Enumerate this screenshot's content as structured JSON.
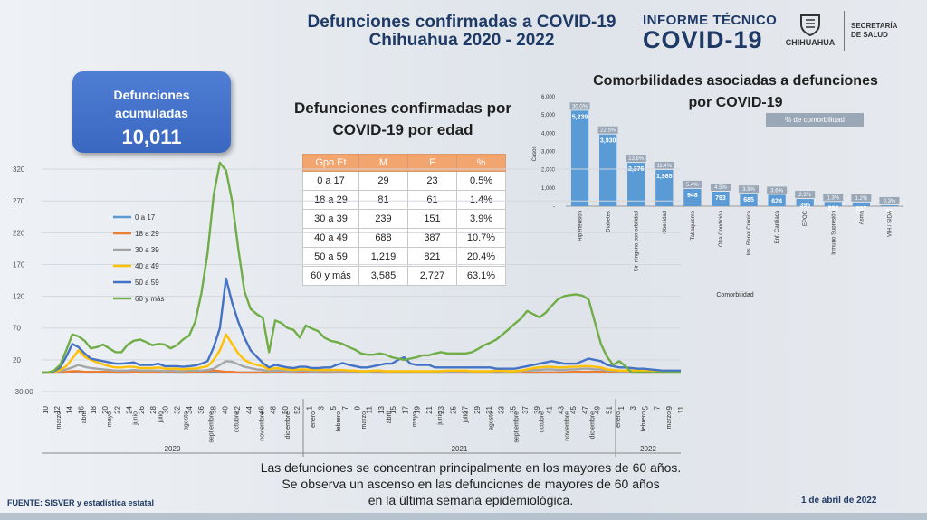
{
  "header": {
    "title_line1": "Defunciones confirmadas a COVID-19",
    "title_line2": "Chihuahua 2020 - 2022",
    "brand_line1": "INFORME TÉCNICO",
    "brand_line2": "COVID-19",
    "logo_text": "CHIHUAHUA",
    "secretaria_line1": "SECRETARÍA",
    "secretaria_line2": "DE SALUD"
  },
  "kpi": {
    "label_line1": "Defunciones",
    "label_line2": "acumuladas",
    "value": "10,011"
  },
  "age_table": {
    "title_line1": "Defunciones confirmadas por",
    "title_line2": "COVID-19 por edad",
    "headers": [
      "Gpo Et",
      "M",
      "F",
      "%"
    ],
    "rows": [
      [
        "0 a 17",
        "29",
        "23",
        "0.5%"
      ],
      [
        "18 a 29",
        "81",
        "61",
        "1.4%"
      ],
      [
        "30 a 39",
        "239",
        "151",
        "3.9%"
      ],
      [
        "40 a 49",
        "688",
        "387",
        "10.7%"
      ],
      [
        "50 a 59",
        "1,219",
        "821",
        "20.4%"
      ],
      [
        "60 y más",
        "3,585",
        "2,727",
        "63.1%"
      ]
    ]
  },
  "comorbidity": {
    "title_line1": "Comorbilidades asociadas a defunciones",
    "title_line2": "por COVID-19",
    "legend_label": "% de comorbilidad"
  },
  "note": {
    "line1": "Las defunciones se concentran principalmente en los mayores de 60 años.",
    "line2": "Se observa un ascenso en las defunciones de mayores de 60 años",
    "line3": "en la última semana epidemiológica."
  },
  "footer": {
    "source": "FUENTE: SISVER y estadística estatal",
    "date": "1 de abril de 2022"
  },
  "colors": {
    "accent": "#1f3a66",
    "bar": "#5b9bd5",
    "table_header": "#f2a56e"
  },
  "chart_data": [
    {
      "type": "line",
      "title": "",
      "xlabel": "",
      "ylabel": "",
      "ylim": [
        0,
        340
      ],
      "yticks": [
        "320",
        "270",
        "220",
        "170",
        "120",
        "70",
        "20",
        "-30.00"
      ],
      "grid": true,
      "legend": "left",
      "x_tick_labels": [
        "10",
        "12",
        "14",
        "16",
        "18",
        "20",
        "22",
        "24",
        "26",
        "28",
        "30",
        "32",
        "34",
        "36",
        "38",
        "40",
        "42",
        "44",
        "46",
        "48",
        "50",
        "52",
        "1",
        "3",
        "5",
        "7",
        "9",
        "11",
        "13",
        "15",
        "17",
        "19",
        "21",
        "23",
        "25",
        "27",
        "29",
        "31",
        "33",
        "35",
        "37",
        "39",
        "41",
        "43",
        "45",
        "47",
        "49",
        "51",
        "1",
        "3",
        "5",
        "7",
        "9",
        "11"
      ],
      "month_labels": [
        "marzo",
        "abril",
        "mayo",
        "junio",
        "julio",
        "agosto",
        "septiembre",
        "octubre",
        "noviembre",
        "diciembre",
        "enero",
        "febrero",
        "marzo",
        "abril",
        "mayo",
        "junio",
        "julio",
        "agosto",
        "septiembre",
        "octubre",
        "noviembre",
        "diciembre",
        "enero",
        "febrero",
        "marzo"
      ],
      "year_labels": [
        "2020",
        "2021",
        "2022"
      ],
      "series": [
        {
          "name": "0 a 17",
          "color": "#5b9bd5",
          "values": [
            0,
            0,
            0,
            0,
            0,
            1,
            0,
            0,
            0,
            0,
            0,
            0,
            0,
            0,
            0,
            0,
            1,
            1,
            1,
            0,
            0,
            0,
            0,
            0,
            0,
            0,
            0,
            0,
            0,
            0,
            0,
            0,
            0,
            0,
            0,
            0,
            0,
            0,
            0,
            0,
            0,
            0,
            0,
            0,
            0,
            0,
            0,
            0,
            0,
            0,
            0,
            0,
            0,
            0,
            0,
            0,
            0,
            0,
            0,
            0,
            0,
            0,
            0,
            0,
            0,
            0,
            0,
            0,
            0,
            0,
            0,
            0,
            0,
            0,
            0,
            0,
            0,
            0,
            0,
            0,
            0,
            0,
            0,
            0,
            0,
            0,
            0,
            0,
            0,
            0,
            0,
            0,
            0,
            0,
            0,
            0,
            0,
            0,
            0,
            0,
            1,
            0,
            0,
            0,
            0
          ]
        },
        {
          "name": "18 a 29",
          "color": "#ed7d31",
          "values": [
            0,
            0,
            0,
            0,
            1,
            2,
            2,
            1,
            1,
            1,
            1,
            1,
            0,
            0,
            0,
            1,
            0,
            0,
            0,
            0,
            1,
            1,
            0,
            0,
            0,
            1,
            1,
            2,
            3,
            2,
            1,
            1,
            0,
            0,
            0,
            0,
            0,
            0,
            1,
            1,
            0,
            0,
            0,
            0,
            1,
            0,
            0,
            0,
            0,
            1,
            1,
            0,
            1,
            1,
            0,
            0,
            0,
            0,
            0,
            0,
            0,
            0,
            0,
            0,
            0,
            0,
            0,
            0,
            0,
            0,
            0,
            0,
            0,
            0,
            0,
            0,
            0,
            0,
            0,
            0,
            0,
            0,
            0,
            0,
            0,
            0,
            1,
            1,
            1,
            1,
            1,
            1,
            1,
            1,
            1,
            1,
            0,
            0,
            0,
            0,
            0,
            0,
            0,
            0,
            0
          ]
        },
        {
          "name": "30 a 39",
          "color": "#a5a5a5",
          "values": [
            0,
            0,
            0,
            2,
            5,
            8,
            12,
            9,
            7,
            6,
            5,
            4,
            3,
            3,
            3,
            4,
            3,
            3,
            3,
            3,
            2,
            3,
            2,
            2,
            3,
            3,
            3,
            4,
            6,
            12,
            18,
            17,
            13,
            9,
            7,
            5,
            4,
            2,
            3,
            3,
            2,
            2,
            3,
            3,
            2,
            2,
            2,
            2,
            2,
            2,
            2,
            2,
            1,
            1,
            2,
            2,
            1,
            1,
            1,
            1,
            1,
            1,
            1,
            1,
            1,
            1,
            1,
            1,
            2,
            2,
            1,
            1,
            1,
            1,
            2,
            2,
            1,
            1,
            2,
            3,
            4,
            4,
            5,
            5,
            4,
            4,
            5,
            5,
            6,
            6,
            5,
            5,
            3,
            3,
            2,
            2,
            2,
            2,
            2,
            1,
            1,
            1,
            1,
            0,
            0
          ]
        },
        {
          "name": "40 a 49",
          "color": "#ffc000",
          "values": [
            0,
            0,
            1,
            4,
            10,
            22,
            35,
            25,
            20,
            16,
            13,
            10,
            8,
            8,
            9,
            9,
            7,
            7,
            7,
            8,
            6,
            6,
            6,
            5,
            6,
            6,
            8,
            10,
            20,
            35,
            60,
            45,
            30,
            20,
            15,
            12,
            10,
            5,
            7,
            6,
            5,
            4,
            5,
            5,
            4,
            4,
            4,
            4,
            4,
            4,
            3,
            3,
            2,
            2,
            3,
            3,
            2,
            2,
            2,
            2,
            2,
            2,
            2,
            2,
            2,
            2,
            3,
            3,
            3,
            3,
            2,
            2,
            2,
            2,
            3,
            3,
            2,
            2,
            3,
            5,
            7,
            8,
            9,
            9,
            8,
            8,
            9,
            9,
            10,
            10,
            9,
            8,
            5,
            4,
            3,
            3,
            3,
            3,
            3,
            2,
            2,
            2,
            1,
            1,
            1
          ]
        },
        {
          "name": "50 a 59",
          "color": "#4472c4",
          "values": [
            0,
            0,
            2,
            8,
            25,
            45,
            40,
            30,
            22,
            20,
            18,
            16,
            14,
            14,
            15,
            16,
            12,
            12,
            12,
            14,
            10,
            10,
            10,
            9,
            10,
            11,
            14,
            18,
            40,
            70,
            148,
            110,
            80,
            55,
            35,
            25,
            15,
            8,
            12,
            10,
            8,
            7,
            9,
            9,
            7,
            7,
            8,
            8,
            12,
            15,
            12,
            10,
            8,
            8,
            10,
            12,
            14,
            14,
            20,
            24,
            14,
            12,
            12,
            12,
            8,
            8,
            8,
            8,
            8,
            8,
            8,
            8,
            8,
            8,
            6,
            6,
            6,
            6,
            8,
            10,
            12,
            14,
            16,
            18,
            16,
            14,
            14,
            14,
            18,
            22,
            20,
            18,
            12,
            10,
            8,
            8,
            7,
            6,
            6,
            5,
            4,
            3,
            3,
            3,
            3
          ]
        },
        {
          "name": "60 y más",
          "color": "#70ad47",
          "values": [
            0,
            0,
            3,
            12,
            35,
            60,
            57,
            50,
            38,
            40,
            44,
            38,
            32,
            32,
            44,
            50,
            52,
            48,
            43,
            45,
            44,
            38,
            43,
            52,
            58,
            80,
            125,
            188,
            280,
            330,
            318,
            270,
            195,
            128,
            100,
            92,
            86,
            32,
            82,
            78,
            70,
            67,
            55,
            74,
            69,
            65,
            55,
            50,
            48,
            45,
            40,
            36,
            30,
            28,
            28,
            30,
            28,
            24,
            22,
            20,
            22,
            24,
            27,
            27,
            30,
            32,
            30,
            30,
            30,
            30,
            32,
            37,
            43,
            47,
            52,
            60,
            68,
            77,
            85,
            97,
            92,
            87,
            94,
            105,
            115,
            120,
            122,
            123,
            121,
            115,
            80,
            45,
            25,
            12,
            18,
            10,
            0,
            0,
            0,
            0,
            0,
            0,
            0,
            0,
            0
          ]
        }
      ]
    },
    {
      "type": "bar",
      "title": "",
      "xlabel": "Comorbilidad",
      "ylabel": "Casos",
      "ylim": [
        0,
        6000
      ],
      "yticks": [
        "6,000",
        "5,000",
        "4,000",
        "3,000",
        "2,000",
        "1,000",
        "-"
      ],
      "categories": [
        "Hipertensión",
        "Diabetes",
        "Sin ninguna comorbilidad",
        "Obesidad",
        "Tabaquismo",
        "Otra Condición",
        "Ins. Renal Crónica",
        "Enf. Cardiaca",
        "EPOC",
        "Inmuno Supresión",
        "Asma",
        "VIH / SIDA"
      ],
      "values": [
        5239,
        3930,
        2376,
        1985,
        948,
        793,
        685,
        624,
        395,
        232,
        207,
        51
      ],
      "value_labels": [
        "5,239",
        "3,930",
        "2,376",
        "1,985",
        "948",
        "793",
        "685",
        "624",
        "395",
        "232",
        "207",
        "51"
      ],
      "percent_labels": [
        "30.0%",
        "22.5%",
        "13.6%",
        "11.4%",
        "5.4%",
        "4.5%",
        "3.9%",
        "3.6%",
        "2.3%",
        "1.3%",
        "1.2%",
        "0.3%"
      ]
    }
  ]
}
